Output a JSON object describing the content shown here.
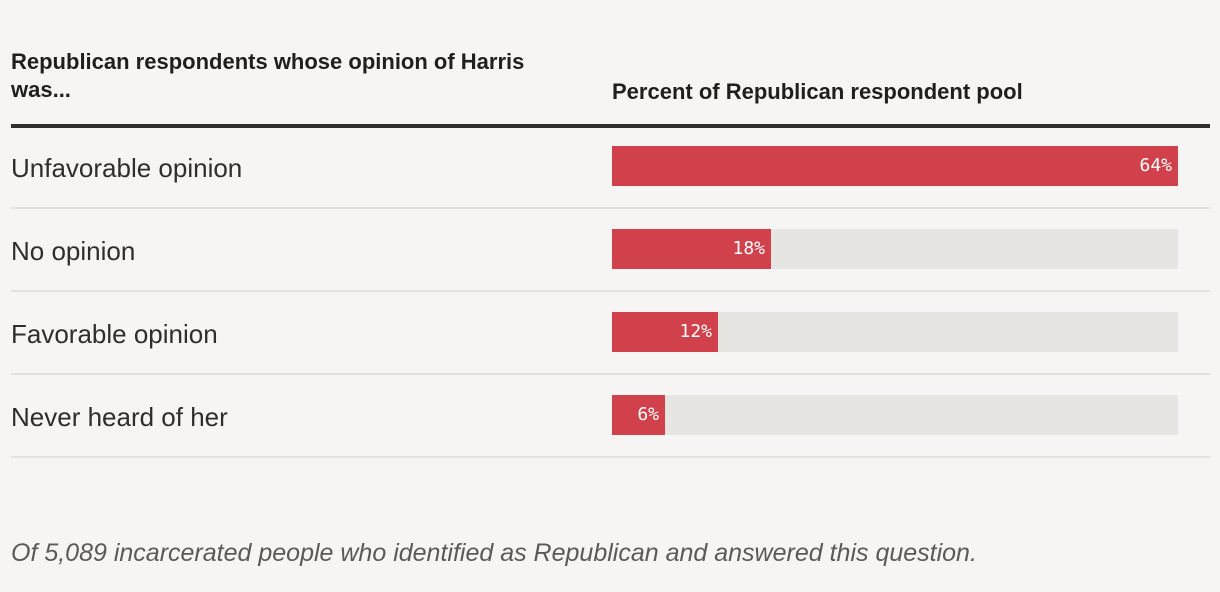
{
  "header": {
    "left": "Republican respondents whose opinion of Harris was...",
    "right": "Percent of Republican respondent pool"
  },
  "chart_data": {
    "type": "bar",
    "orientation": "horizontal",
    "categories": [
      "Unfavorable opinion",
      "No opinion",
      "Favorable opinion",
      "Never heard of her"
    ],
    "values": [
      64,
      18,
      12,
      6
    ],
    "value_labels": [
      "64%",
      "18%",
      "12%",
      "6%"
    ],
    "xlim": [
      0,
      64
    ],
    "bar_color": "#d0414b",
    "track_color": "#e6e5e2"
  },
  "note": "Of 5,089 incarcerated people who identified as Republican and answered this question."
}
